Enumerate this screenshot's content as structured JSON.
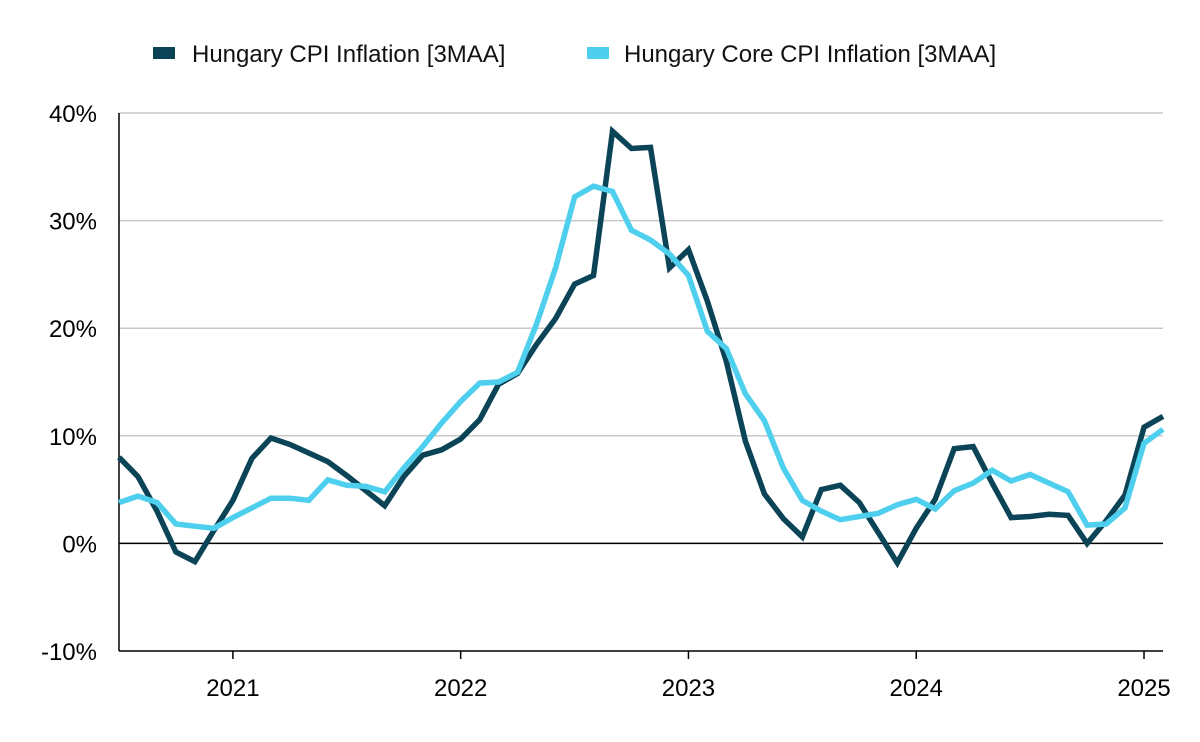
{
  "chart_data": {
    "type": "line",
    "title": "",
    "xlabel": "",
    "ylabel": "",
    "ylim": [
      -10,
      40
    ],
    "y_ticks": [
      -10,
      0,
      10,
      20,
      30,
      40
    ],
    "y_tick_labels": [
      "-10%",
      "0%",
      "10%",
      "20%",
      "30%",
      "40%"
    ],
    "x_tick_labels": [
      "2021",
      "2022",
      "2023",
      "2024",
      "2025"
    ],
    "x_ticks": [
      "2021-01",
      "2022-01",
      "2023-01",
      "2024-01",
      "2025-01"
    ],
    "xlim": [
      "2020-07",
      "2025-02"
    ],
    "grid": "horizontal",
    "legend_position": "top",
    "x": [
      "2020-07",
      "2020-08",
      "2020-09",
      "2020-10",
      "2020-11",
      "2020-12",
      "2021-01",
      "2021-02",
      "2021-03",
      "2021-04",
      "2021-05",
      "2021-06",
      "2021-07",
      "2021-08",
      "2021-09",
      "2021-10",
      "2021-11",
      "2021-12",
      "2022-01",
      "2022-02",
      "2022-03",
      "2022-04",
      "2022-05",
      "2022-06",
      "2022-07",
      "2022-08",
      "2022-09",
      "2022-10",
      "2022-11",
      "2022-12",
      "2023-01",
      "2023-02",
      "2023-03",
      "2023-04",
      "2023-05",
      "2023-06",
      "2023-07",
      "2023-08",
      "2023-09",
      "2023-10",
      "2023-11",
      "2023-12",
      "2024-01",
      "2024-02",
      "2024-03",
      "2024-04",
      "2024-05",
      "2024-06",
      "2024-07",
      "2024-08",
      "2024-09",
      "2024-10",
      "2024-11",
      "2024-12",
      "2025-01",
      "2025-02"
    ],
    "series": [
      {
        "name": "Hungary CPI Inflation [3MAA]",
        "color": "#0b4457",
        "values": [
          8.0,
          6.2,
          3.0,
          -0.8,
          -1.7,
          1.2,
          4.0,
          7.9,
          9.8,
          9.2,
          8.4,
          7.6,
          6.3,
          4.9,
          3.5,
          6.2,
          8.2,
          8.7,
          9.7,
          11.5,
          14.8,
          15.8,
          18.5,
          20.9,
          24.1,
          24.9,
          38.3,
          36.7,
          36.8,
          25.6,
          27.3,
          22.5,
          16.9,
          9.5,
          4.6,
          2.3,
          0.6,
          5.0,
          5.4,
          3.8,
          1.0,
          -1.8,
          1.4,
          4.1,
          8.8,
          9.0,
          5.6,
          2.4,
          2.5,
          2.7,
          2.6,
          0.0,
          2.1,
          4.5,
          10.8,
          11.8
        ]
      },
      {
        "name": "Hungary Core CPI Inflation [3MAA]",
        "color": "#4fcfee",
        "values": [
          3.8,
          4.4,
          3.8,
          1.8,
          1.6,
          1.4,
          2.4,
          3.3,
          4.2,
          4.2,
          4.0,
          5.9,
          5.4,
          5.3,
          4.8,
          7.0,
          9.0,
          11.2,
          13.2,
          14.9,
          15.0,
          15.9,
          20.4,
          25.6,
          32.2,
          33.2,
          32.7,
          29.1,
          28.2,
          26.9,
          24.9,
          19.7,
          18.1,
          13.9,
          11.4,
          7.0,
          4.0,
          3.0,
          2.2,
          2.5,
          2.8,
          3.6,
          4.1,
          3.2,
          4.9,
          5.6,
          6.8,
          5.8,
          6.4,
          5.6,
          4.8,
          1.7,
          1.8,
          3.3,
          9.3,
          10.6
        ]
      }
    ]
  }
}
